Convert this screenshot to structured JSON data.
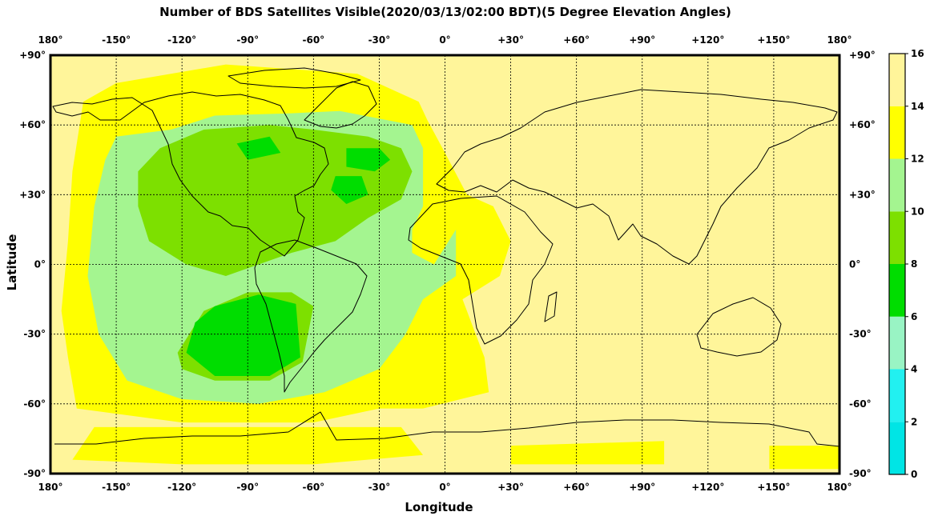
{
  "chart_data": {
    "type": "heatmap",
    "title": "Number of BDS Satellites Visible(2020/03/13/02:00 BDT)(5 Degree Elevation Angles)",
    "xlabel": "Longitude",
    "ylabel": "Latitude",
    "xlim": [
      -180,
      180
    ],
    "ylim": [
      -90,
      90
    ],
    "grid": true,
    "x_ticks": [
      {
        "value": -180,
        "label": "180°"
      },
      {
        "value": -150,
        "label": "-150°"
      },
      {
        "value": -120,
        "label": "-120°"
      },
      {
        "value": -90,
        "label": "-90°"
      },
      {
        "value": -60,
        "label": "-60°"
      },
      {
        "value": -30,
        "label": "-30°"
      },
      {
        "value": 0,
        "label": "0°"
      },
      {
        "value": 30,
        "label": "+30°"
      },
      {
        "value": 60,
        "label": "+60°"
      },
      {
        "value": 90,
        "label": "+90°"
      },
      {
        "value": 120,
        "label": "+120°"
      },
      {
        "value": 150,
        "label": "+150°"
      },
      {
        "value": 180,
        "label": "180°"
      }
    ],
    "y_ticks": [
      {
        "value": 90,
        "label": "+90°"
      },
      {
        "value": 60,
        "label": "+60°"
      },
      {
        "value": 30,
        "label": "+30°"
      },
      {
        "value": 0,
        "label": "0°"
      },
      {
        "value": -30,
        "label": "-30°"
      },
      {
        "value": -60,
        "label": "-60°"
      },
      {
        "value": -90,
        "label": "-90°"
      }
    ],
    "colorbar": {
      "placement": "right",
      "range": [
        0,
        16
      ],
      "ticks": [
        "0",
        "2",
        "4",
        "6",
        "8",
        "10",
        "12",
        "14",
        "16"
      ],
      "bands": [
        {
          "from": 0,
          "to": 2,
          "color": "#00e5e5"
        },
        {
          "from": 2,
          "to": 4,
          "color": "#22f0f0"
        },
        {
          "from": 4,
          "to": 6,
          "color": "#99f4c4"
        },
        {
          "from": 6,
          "to": 8,
          "color": "#00dd00"
        },
        {
          "from": 8,
          "to": 10,
          "color": "#7de000"
        },
        {
          "from": 10,
          "to": 12,
          "color": "#a4f590"
        },
        {
          "from": 12,
          "to": 14,
          "color": "#ffff00"
        },
        {
          "from": 14,
          "to": 16,
          "color": "#fff59a"
        }
      ]
    },
    "regions": [
      {
        "level": 15,
        "color": "#fff59a",
        "polygon": [
          [
            -180,
            90
          ],
          [
            180,
            90
          ],
          [
            180,
            -90
          ],
          [
            -180,
            -90
          ]
        ]
      },
      {
        "level": 13,
        "color": "#ffff00",
        "polygon": [
          [
            -150,
            78
          ],
          [
            -100,
            86
          ],
          [
            -40,
            82
          ],
          [
            -12,
            70
          ],
          [
            -8,
            62
          ],
          [
            0,
            48
          ],
          [
            10,
            30
          ],
          [
            22,
            25
          ],
          [
            30,
            10
          ],
          [
            25,
            -5
          ],
          [
            8,
            -15
          ],
          [
            18,
            -40
          ],
          [
            20,
            -55
          ],
          [
            -10,
            -62
          ],
          [
            -30,
            -62
          ],
          [
            -60,
            -68
          ],
          [
            -120,
            -68
          ],
          [
            -168,
            -62
          ],
          [
            -172,
            -40
          ],
          [
            -175,
            -20
          ],
          [
            -172,
            10
          ],
          [
            -170,
            40
          ],
          [
            -165,
            70
          ]
        ]
      },
      {
        "level": 13,
        "color": "#ffff00",
        "polygon": [
          [
            -160,
            -70
          ],
          [
            -20,
            -70
          ],
          [
            -10,
            -82
          ],
          [
            -60,
            -86
          ],
          [
            -120,
            -86
          ],
          [
            -170,
            -84
          ]
        ]
      },
      {
        "level": 13,
        "color": "#ffff00",
        "polygon": [
          [
            30,
            -78
          ],
          [
            100,
            -76
          ],
          [
            100,
            -86
          ],
          [
            30,
            -86
          ]
        ]
      },
      {
        "level": 13,
        "color": "#ffff00",
        "polygon": [
          [
            148,
            -78
          ],
          [
            180,
            -78
          ],
          [
            180,
            -88
          ],
          [
            148,
            -88
          ]
        ]
      },
      {
        "level": 11,
        "color": "#a4f590",
        "polygon": [
          [
            -150,
            55
          ],
          [
            -125,
            58
          ],
          [
            -105,
            64
          ],
          [
            -70,
            65
          ],
          [
            -48,
            66
          ],
          [
            -15,
            60
          ],
          [
            -10,
            50
          ],
          [
            -10,
            25
          ],
          [
            -15,
            15
          ],
          [
            -15,
            5
          ],
          [
            -5,
            0
          ],
          [
            5,
            15
          ],
          [
            5,
            -5
          ],
          [
            -10,
            -15
          ],
          [
            -18,
            -30
          ],
          [
            -30,
            -45
          ],
          [
            -55,
            -55
          ],
          [
            -85,
            -60
          ],
          [
            -120,
            -58
          ],
          [
            -145,
            -50
          ],
          [
            -158,
            -30
          ],
          [
            -163,
            -5
          ],
          [
            -160,
            25
          ],
          [
            -155,
            45
          ]
        ]
      },
      {
        "level": 9,
        "color": "#7de000",
        "polygon": [
          [
            -130,
            50
          ],
          [
            -110,
            58
          ],
          [
            -80,
            60
          ],
          [
            -60,
            58
          ],
          [
            -35,
            55
          ],
          [
            -20,
            50
          ],
          [
            -15,
            40
          ],
          [
            -20,
            28
          ],
          [
            -35,
            20
          ],
          [
            -50,
            10
          ],
          [
            -70,
            5
          ],
          [
            -85,
            0
          ],
          [
            -100,
            -5
          ],
          [
            -118,
            0
          ],
          [
            -135,
            10
          ],
          [
            -140,
            25
          ],
          [
            -140,
            40
          ]
        ]
      },
      {
        "level": 9,
        "color": "#7de000",
        "polygon": [
          [
            -122,
            -38
          ],
          [
            -110,
            -20
          ],
          [
            -90,
            -12
          ],
          [
            -70,
            -12
          ],
          [
            -60,
            -18
          ],
          [
            -65,
            -42
          ],
          [
            -80,
            -50
          ],
          [
            -105,
            -50
          ],
          [
            -120,
            -45
          ]
        ]
      },
      {
        "level": 7,
        "color": "#00dd00",
        "polygon": [
          [
            -105,
            -18
          ],
          [
            -85,
            -13
          ],
          [
            -68,
            -17
          ],
          [
            -66,
            -40
          ],
          [
            -80,
            -48
          ],
          [
            -105,
            -48
          ],
          [
            -118,
            -38
          ],
          [
            -114,
            -25
          ]
        ]
      },
      {
        "level": 7,
        "color": "#00dd00",
        "polygon": [
          [
            -45,
            50
          ],
          [
            -30,
            50
          ],
          [
            -25,
            45
          ],
          [
            -32,
            40
          ],
          [
            -45,
            42
          ]
        ]
      },
      {
        "level": 7,
        "color": "#00dd00",
        "polygon": [
          [
            -50,
            38
          ],
          [
            -38,
            38
          ],
          [
            -35,
            30
          ],
          [
            -45,
            26
          ],
          [
            -52,
            32
          ]
        ]
      },
      {
        "level": 7,
        "color": "#00dd00",
        "polygon": [
          [
            -95,
            52
          ],
          [
            -80,
            55
          ],
          [
            -75,
            48
          ],
          [
            -90,
            45
          ]
        ]
      }
    ]
  }
}
